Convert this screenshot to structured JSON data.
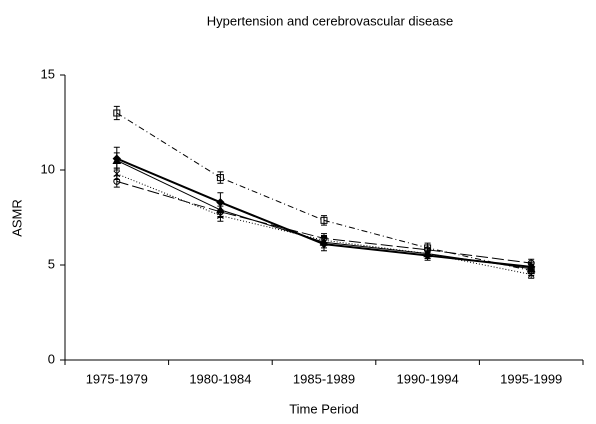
{
  "chart_data": {
    "type": "line",
    "title": "Hypertension and cerebrovascular disease",
    "x_label": "Time Period",
    "y_label": "ASMR",
    "categories": [
      "1975-1979",
      "1980-1984",
      "1985-1989",
      "1990-1994",
      "1995-1999"
    ],
    "ylim": [
      0,
      15
    ],
    "yticks": [
      0,
      5,
      10,
      15
    ],
    "series": [
      {
        "color": "#000000",
        "dash": "6,3,1,3",
        "width": 1,
        "marker": "square",
        "values": [
          13.0,
          9.6,
          7.35,
          5.9,
          4.7
        ],
        "errors": [
          0.35,
          0.3,
          0.25,
          0.25,
          0.25
        ]
      },
      {
        "color": "#000000",
        "dash": "",
        "width": 2,
        "marker": "diamond",
        "values": [
          10.6,
          8.3,
          6.1,
          5.5,
          4.9
        ],
        "errors": [
          0.6,
          0.5,
          0.35,
          0.25,
          0.25
        ]
      },
      {
        "color": "#000000",
        "dash": "12,4",
        "width": 1,
        "marker": "circle",
        "values": [
          9.4,
          7.8,
          6.4,
          5.8,
          5.1
        ],
        "errors": [
          0.3,
          0.3,
          0.25,
          0.25,
          0.2
        ]
      },
      {
        "color": "#000000",
        "dash": "1,2",
        "width": 1,
        "marker": "cross",
        "values": [
          9.8,
          7.6,
          6.3,
          5.6,
          4.5
        ],
        "errors": [
          0.3,
          0.3,
          0.25,
          0.25,
          0.2
        ]
      },
      {
        "color": "#000000",
        "dash": "",
        "width": 1,
        "marker": "triangle",
        "values": [
          10.5,
          7.9,
          6.2,
          5.6,
          4.8
        ],
        "errors": [
          0.4,
          0.35,
          0.3,
          0.25,
          0.25
        ]
      }
    ]
  }
}
